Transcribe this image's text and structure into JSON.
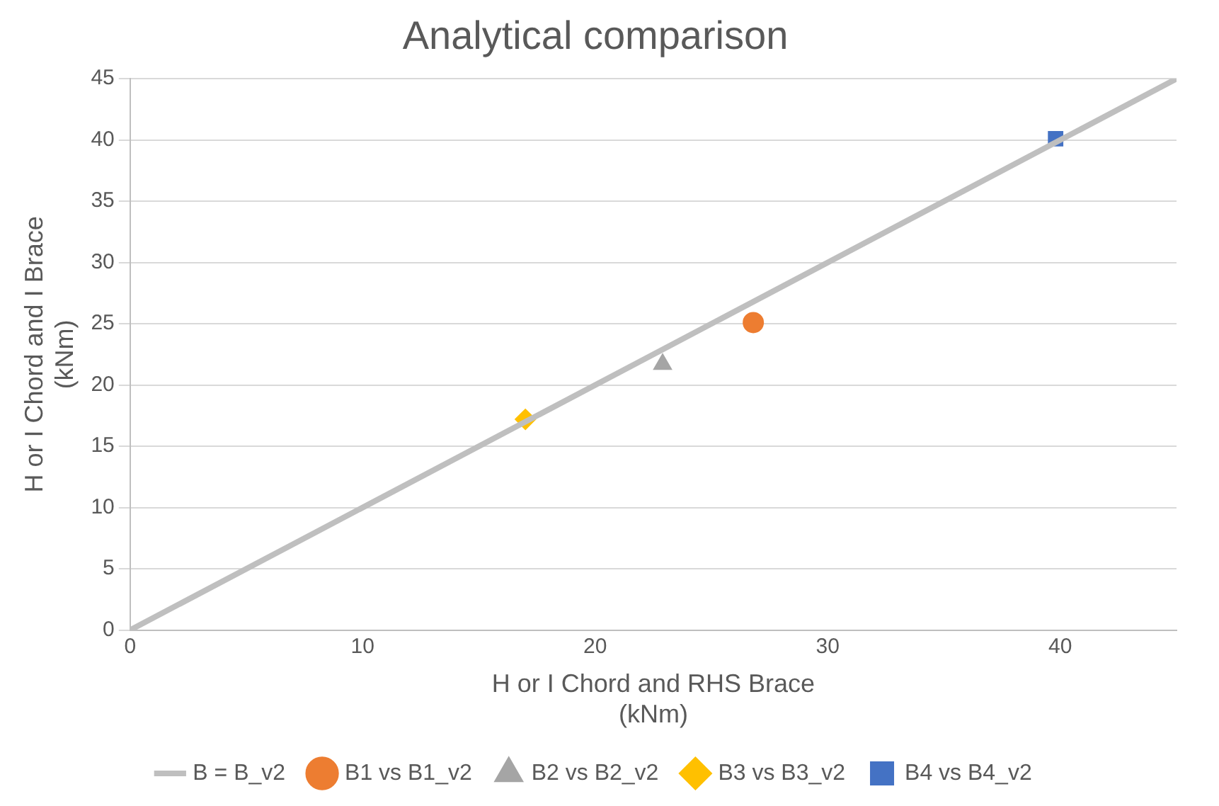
{
  "chart_data": {
    "type": "scatter",
    "title": "Analytical comparison",
    "xlabel": "H or I Chord and RHS Brace\n(kNm)",
    "ylabel": "H or I Chord and I Brace\n(kNm)",
    "xlim": [
      0,
      45
    ],
    "xticks": [
      0,
      10,
      20,
      30,
      40
    ],
    "ylim": [
      0,
      45
    ],
    "yticks": [
      0,
      5,
      10,
      15,
      20,
      25,
      30,
      35,
      40,
      45
    ],
    "grid": "y",
    "legend": "bottom",
    "series": [
      {
        "name": "B = B_v2",
        "type": "line",
        "color": "#bfbfbf",
        "marker": "none",
        "x": [
          0,
          45
        ],
        "values": [
          0,
          45
        ]
      },
      {
        "name": "B1 vs B1_v2",
        "color": "#ed7d31",
        "marker": "circle",
        "x": [
          26.8
        ],
        "values": [
          25.1
        ]
      },
      {
        "name": "B2 vs B2_v2",
        "color": "#a5a5a5",
        "marker": "triangle",
        "x": [
          22.9
        ],
        "values": [
          21.7
        ]
      },
      {
        "name": "B3 vs B3_v2",
        "color": "#ffc000",
        "marker": "diamond",
        "x": [
          17.0
        ],
        "values": [
          17.2
        ]
      },
      {
        "name": "B4 vs B4_v2",
        "color": "#4472c4",
        "marker": "square",
        "x": [
          39.8
        ],
        "values": [
          40.1
        ]
      }
    ]
  }
}
